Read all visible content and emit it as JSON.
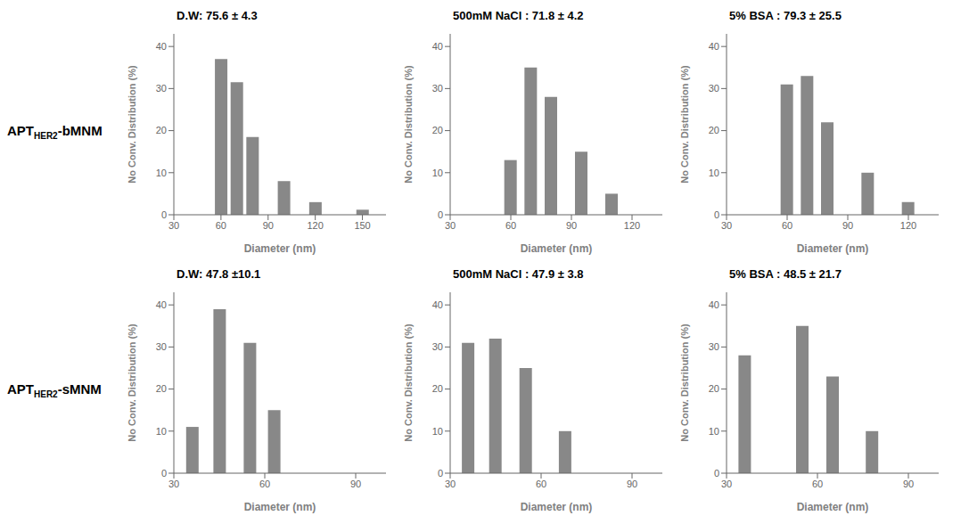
{
  "chart_data": [
    {
      "type": "bar",
      "title": "D.W: 75.6 ± 4.3",
      "x": [
        60,
        70,
        80,
        100,
        120,
        150
      ],
      "values": [
        37,
        31.5,
        18.5,
        8,
        3,
        1.2
      ],
      "xlim": [
        30,
        165
      ],
      "xticks": [
        30,
        60,
        90,
        120,
        150
      ],
      "ylim": [
        0,
        43
      ],
      "yticks": [
        0,
        10,
        20,
        30,
        40
      ],
      "xlabel": "Diameter (nm)",
      "ylabel": "No Conv. Distribution (%)",
      "color": "#888888",
      "annotations": [
        "APT",
        "HER2",
        "-bMNM"
      ]
    },
    {
      "type": "bar",
      "title": "500mM NaCl : 71.8 ± 4.2",
      "x": [
        60,
        70,
        80,
        95,
        110
      ],
      "values": [
        13,
        35,
        28,
        15,
        5
      ],
      "xlim": [
        30,
        135
      ],
      "xticks": [
        30,
        60,
        90,
        120
      ],
      "ylim": [
        0,
        43
      ],
      "yticks": [
        0,
        10,
        20,
        30,
        40
      ],
      "xlabel": "Diameter (nm)",
      "ylabel": "No Conv. Distribution (%)",
      "color": "#888888"
    },
    {
      "type": "bar",
      "title": "5% BSA : 79.3 ± 25.5",
      "x": [
        60,
        70,
        80,
        100,
        120
      ],
      "values": [
        31,
        33,
        22,
        10,
        3
      ],
      "xlim": [
        30,
        135
      ],
      "xticks": [
        30,
        60,
        90,
        120
      ],
      "ylim": [
        0,
        43
      ],
      "yticks": [
        0,
        10,
        20,
        30,
        40
      ],
      "xlabel": "Diameter (nm)",
      "ylabel": "No Conv. Distribution (%)",
      "color": "#888888"
    },
    {
      "type": "bar",
      "title": "D.W: 47.8 ±10.1",
      "x": [
        36,
        45,
        55,
        63
      ],
      "values": [
        11,
        39,
        31,
        15
      ],
      "xlim": [
        30,
        100
      ],
      "xticks": [
        30,
        60,
        90
      ],
      "ylim": [
        0,
        43
      ],
      "yticks": [
        0,
        10,
        20,
        30,
        40
      ],
      "xlabel": "Diameter (nm)",
      "ylabel": "No Conv. Distribution (%)",
      "color": "#888888",
      "annotations": [
        "APT",
        "HER2",
        "-sMNM"
      ]
    },
    {
      "type": "bar",
      "title": "500mM NaCl : 47.9 ± 3.8",
      "x": [
        36,
        45,
        55,
        68
      ],
      "values": [
        31,
        32,
        25,
        10
      ],
      "xlim": [
        30,
        100
      ],
      "xticks": [
        30,
        60,
        90
      ],
      "ylim": [
        0,
        43
      ],
      "yticks": [
        0,
        10,
        20,
        30,
        40
      ],
      "xlabel": "Diameter (nm)",
      "ylabel": "No Conv. Distribution (%)",
      "color": "#888888"
    },
    {
      "type": "bar",
      "title": "5% BSA : 48.5 ± 21.7",
      "x": [
        36,
        55,
        65,
        78
      ],
      "values": [
        28,
        35,
        23,
        10
      ],
      "xlim": [
        30,
        100
      ],
      "xticks": [
        30,
        60,
        90
      ],
      "ylim": [
        0,
        43
      ],
      "yticks": [
        0,
        10,
        20,
        30,
        40
      ],
      "xlabel": "Diameter (nm)",
      "ylabel": "No Conv. Distribution (%)",
      "color": "#888888"
    }
  ]
}
